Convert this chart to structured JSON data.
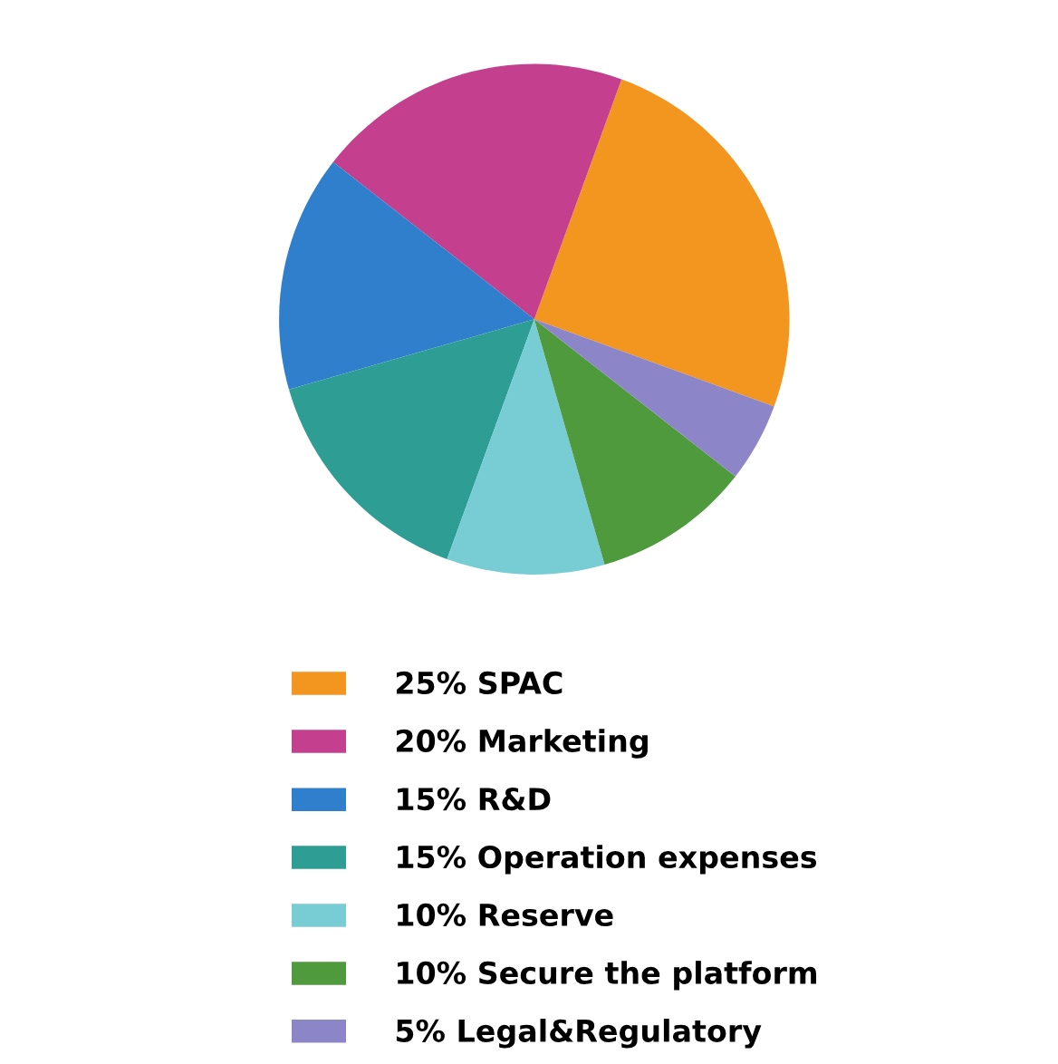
{
  "chart_data": {
    "type": "pie",
    "categories": [
      "SPAC",
      "Marketing",
      "R&D",
      "Operation expenses",
      "Reserve",
      "Secure the platform",
      "Legal&Regulatory"
    ],
    "values": [
      25,
      20,
      15,
      15,
      10,
      10,
      5
    ],
    "value_labels": [
      "25%",
      "20%",
      "15%",
      "15%",
      "10%",
      "10%",
      "5%"
    ],
    "colors": [
      "#f2961f",
      "#c4408f",
      "#2f7fcc",
      "#2e9e94",
      "#78ccd4",
      "#4f9a3c",
      "#8c86c8"
    ],
    "legend": "bottom"
  }
}
